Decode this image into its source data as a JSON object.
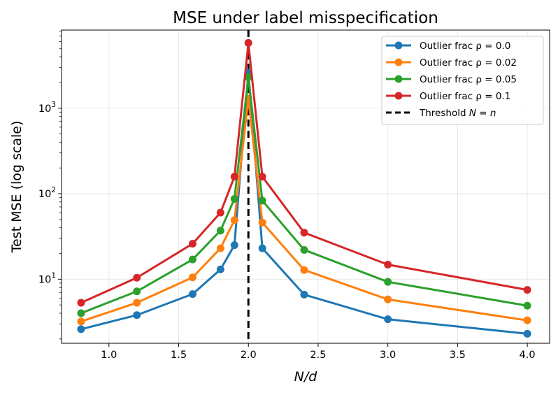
{
  "chart_data": {
    "type": "line",
    "title": "MSE under label misspecification",
    "xlabel": "N/d",
    "ylabel": "Test MSE (log scale)",
    "yscale": "log",
    "xlim": [
      0.66,
      4.16
    ],
    "ylim": [
      1.78,
      8200
    ],
    "x": [
      0.8,
      1.2,
      1.6,
      1.8,
      1.9,
      2.0,
      2.1,
      2.4,
      3.0,
      4.0
    ],
    "xticks": [
      1.0,
      1.5,
      2.0,
      2.5,
      3.0,
      3.5,
      4.0
    ],
    "xtick_labels": [
      "1.0",
      "1.5",
      "2.0",
      "2.5",
      "3.0",
      "3.5",
      "4.0"
    ],
    "yticks": [
      {
        "value": 10,
        "base": "10",
        "exp": "1"
      },
      {
        "value": 100,
        "base": "10",
        "exp": "2"
      },
      {
        "value": 1000,
        "base": "10",
        "exp": "3"
      }
    ],
    "grid": true,
    "legend_position": "top-right",
    "series": [
      {
        "name": "Outlier frac ρ = 0.0",
        "color": "#1f77b4",
        "values": [
          2.6,
          3.8,
          6.7,
          13,
          25,
          2600,
          23,
          6.6,
          3.4,
          2.3
        ]
      },
      {
        "name": "Outlier frac ρ = 0.02",
        "color": "#ff7f0e",
        "values": [
          3.2,
          5.3,
          10.5,
          23,
          49,
          1300,
          46,
          12.8,
          5.8,
          3.3
        ]
      },
      {
        "name": "Outlier frac ρ = 0.05",
        "color": "#2ca02c",
        "values": [
          4.0,
          7.2,
          17,
          37,
          87,
          2300,
          83,
          22,
          9.3,
          4.9
        ]
      },
      {
        "name": "Outlier frac ρ = 0.1",
        "color": "#d62728",
        "values": [
          5.3,
          10.4,
          26,
          60,
          158,
          5800,
          158,
          35,
          14.8,
          7.5
        ]
      }
    ],
    "threshold": {
      "x": 2.0,
      "label_prefix": "Threshold ",
      "label_math": "N = n",
      "color": "#000000"
    }
  }
}
